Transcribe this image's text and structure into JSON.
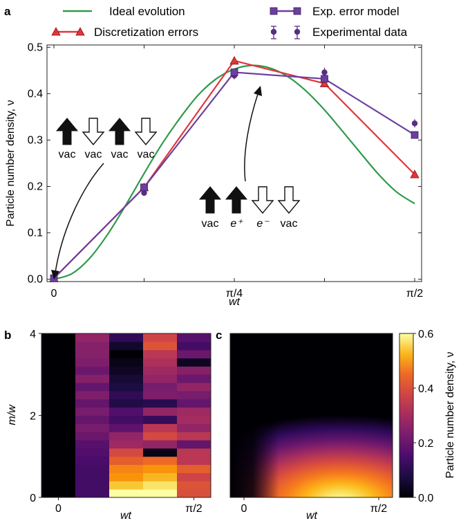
{
  "panels": {
    "a": "a",
    "b": "b",
    "c": "c"
  },
  "chart_data": [
    {
      "type": "line",
      "panel": "a",
      "xlabel": "wt",
      "ylabel": "Particle number density, ν",
      "xticks": [
        "0",
        "π/4",
        "π/2"
      ],
      "yticks": [
        "0.0",
        "0.1",
        "0.2",
        "0.3",
        "0.4",
        "0.5"
      ],
      "xlim": [
        0,
        1.5708
      ],
      "ylim": [
        -0.005,
        0.505
      ],
      "legend": {
        "placement": "top",
        "entries": [
          {
            "label": "Ideal evolution",
            "color": "#2f9a4a"
          },
          {
            "label": "Exp. error model",
            "color": "#6b3fa0"
          },
          {
            "label": "Discretization errors",
            "color": "#e0363a"
          },
          {
            "label": "Experimental data",
            "color": "#5a2d82"
          }
        ]
      },
      "series": [
        {
          "name": "Ideal evolution",
          "color": "#2f9a4a",
          "x": [
            0,
            0.0785,
            0.157,
            0.2356,
            0.3142,
            0.3927,
            0.4712,
            0.5498,
            0.6283,
            0.7069,
            0.7854,
            0.864,
            0.9425,
            1.021,
            1.0996,
            1.1781,
            1.2566,
            1.3352,
            1.4137,
            1.4923,
            1.5708
          ],
          "y": [
            0.0,
            0.012,
            0.046,
            0.098,
            0.161,
            0.228,
            0.292,
            0.348,
            0.397,
            0.432,
            0.453,
            0.461,
            0.455,
            0.436,
            0.405,
            0.365,
            0.319,
            0.272,
            0.226,
            0.188,
            0.163
          ]
        },
        {
          "name": "Discretization errors",
          "color": "#e0363a",
          "marker": "triangle",
          "x": [
            0,
            0.3927,
            0.7854,
            1.1781,
            1.5708
          ],
          "y": [
            0.002,
            0.198,
            0.471,
            0.422,
            0.226
          ]
        },
        {
          "name": "Exp. error model",
          "color": "#6b3fa0",
          "marker": "square",
          "x": [
            0,
            0.3927,
            0.7854,
            1.1781,
            1.5708
          ],
          "y": [
            0.002,
            0.198,
            0.446,
            0.432,
            0.311
          ]
        },
        {
          "name": "Experimental data",
          "color": "#5a2d82",
          "marker": "circle",
          "x": [
            0,
            0.3927,
            0.7854,
            1.1781,
            1.5708
          ],
          "y": [
            0.002,
            0.186,
            0.439,
            0.446,
            0.336
          ],
          "err": [
            0.003,
            0.004,
            0.008,
            0.01,
            0.009
          ]
        }
      ],
      "annotations": [
        {
          "arrows": [
            "up-filled",
            "down-open",
            "up-filled",
            "down-open"
          ],
          "labels": [
            "vac",
            "vac",
            "vac",
            "vac"
          ],
          "points_to": [
            0,
            0.002
          ]
        },
        {
          "arrows": [
            "up-filled",
            "up-filled",
            "down-open",
            "down-open"
          ],
          "labels": [
            "vac",
            "e⁺",
            "e⁻",
            "vac"
          ],
          "points_to": [
            0.7854,
            0.446
          ]
        }
      ]
    },
    {
      "type": "heatmap",
      "panel": "b",
      "xlabel": "wt",
      "ylabel": "m/w",
      "xticks": [
        "0",
        "π/2"
      ],
      "yticks": [
        "0",
        "2",
        "4"
      ],
      "xlim": [
        0,
        1.5708
      ],
      "ylim": [
        0,
        4
      ],
      "columns": 5,
      "rows": 20,
      "values": [
        [
          0,
          0.12,
          0.62,
          0.66,
          0.35
        ],
        [
          0,
          0.12,
          0.52,
          0.56,
          0.36
        ],
        [
          0,
          0.12,
          0.46,
          0.5,
          0.33
        ],
        [
          0,
          0.12,
          0.44,
          0.46,
          0.38
        ],
        [
          0,
          0.13,
          0.38,
          0.4,
          0.3
        ],
        [
          0,
          0.14,
          0.34,
          0.02,
          0.3
        ],
        [
          0,
          0.15,
          0.26,
          0.24,
          0.17
        ],
        [
          0,
          0.18,
          0.24,
          0.34,
          0.3
        ],
        [
          0,
          0.2,
          0.16,
          0.3,
          0.24
        ],
        [
          0,
          0.17,
          0.12,
          0.1,
          0.27
        ],
        [
          0,
          0.2,
          0.14,
          0.24,
          0.26
        ],
        [
          0,
          0.17,
          0.07,
          0.08,
          0.17
        ],
        [
          0,
          0.21,
          0.09,
          0.21,
          0.2
        ],
        [
          0,
          0.17,
          0.06,
          0.2,
          0.24
        ],
        [
          0,
          0.22,
          0.05,
          0.24,
          0.18
        ],
        [
          0,
          0.18,
          0.03,
          0.26,
          0.22
        ],
        [
          0,
          0.21,
          0.02,
          0.28,
          0.03
        ],
        [
          0,
          0.22,
          0.0,
          0.3,
          0.18
        ],
        [
          0,
          0.22,
          0.04,
          0.36,
          0.12
        ],
        [
          0,
          0.24,
          0.09,
          0.33,
          0.15
        ]
      ]
    },
    {
      "type": "heatmap",
      "panel": "c",
      "xlabel": "wt",
      "xticks": [
        "0",
        "π/2"
      ],
      "xlim": [
        0,
        1.5708
      ],
      "ylim": [
        0,
        4
      ],
      "colorbar": {
        "label": "Particle number density, ν",
        "ticks": [
          "0.0",
          "0.2",
          "0.4",
          "0.6"
        ],
        "range": [
          0,
          0.6
        ]
      }
    }
  ]
}
